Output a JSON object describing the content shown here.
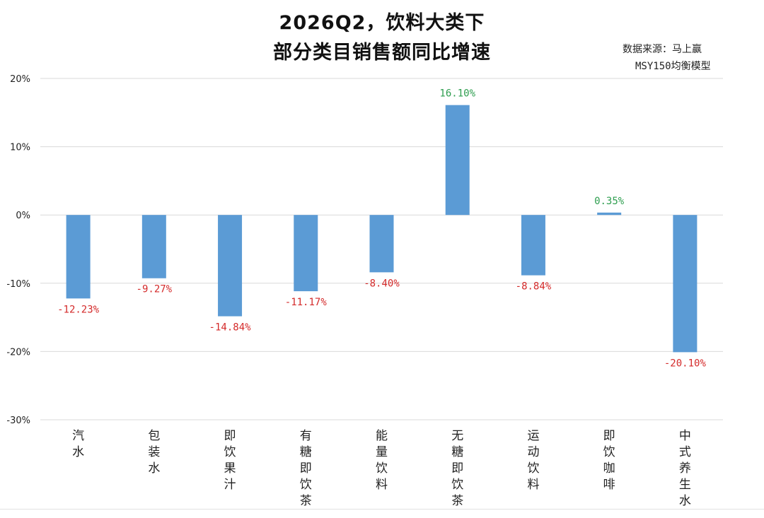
{
  "title_line1": "2026Q2，饮料大类下",
  "title_line2": "部分类目销售额同比增速",
  "source_line1": "数据来源：马上赢",
  "source_line2": "MSY150均衡模型",
  "colors": {
    "bar": "#5b9bd5",
    "positive_label": "#2e9e4f",
    "negative_label": "#d42b2b",
    "grid": "#d9d9d9",
    "axis_text": "#222222"
  },
  "chart_data": {
    "type": "bar",
    "title": "2026Q2，饮料大类下 部分类目销售额同比增速",
    "categories": [
      "汽水",
      "包装水",
      "即饮果汁",
      "有糖即饮茶",
      "能量饮料",
      "无糖即饮茶",
      "运动饮料",
      "即饮咖啡",
      "中式养生水"
    ],
    "values": [
      -12.23,
      -9.27,
      -14.84,
      -11.17,
      -8.4,
      16.1,
      -8.84,
      0.35,
      -20.1
    ],
    "value_labels": [
      "-12.23%",
      "-9.27%",
      "-14.84%",
      "-11.17%",
      "-8.40%",
      "16.10%",
      "-8.84%",
      "0.35%",
      "-20.10%"
    ],
    "ylim": [
      -30,
      20
    ],
    "yticks": [
      "20%",
      "10%",
      "0%",
      "-10%",
      "-20%",
      "-30%"
    ],
    "ytick_values": [
      20,
      10,
      0,
      -10,
      -20,
      -30
    ],
    "grid": true,
    "xlabel": "",
    "ylabel": ""
  }
}
